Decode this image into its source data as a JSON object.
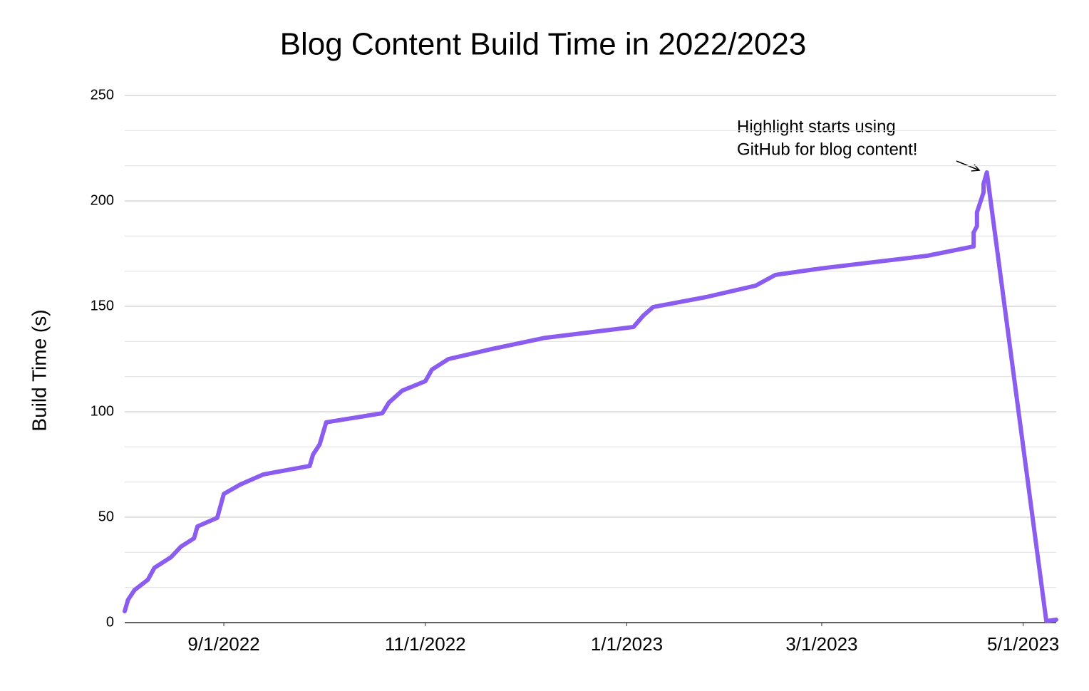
{
  "chart_data": {
    "type": "line",
    "title": "Blog Content Build Time in 2022/2023",
    "y_label": "Build Time (s)",
    "annotation": [
      "Highlight starts using",
      "GitHub for blog content!"
    ],
    "color": "#8b5cf0",
    "grid": true,
    "minor_grid_count": 2,
    "xlim": [
      "2022-08-02",
      "2023-05-11"
    ],
    "xticks": [
      {
        "value": "2022-09-01",
        "label": "9/1/2022"
      },
      {
        "value": "2022-11-01",
        "label": "11/1/2022"
      },
      {
        "value": "2023-01-01",
        "label": "1/1/2023"
      },
      {
        "value": "2023-03-01",
        "label": "3/1/2023"
      },
      {
        "value": "2023-05-01",
        "label": "5/1/2023"
      }
    ],
    "ylim": [
      0,
      250
    ],
    "yticks": [
      0,
      50,
      100,
      150,
      200,
      250
    ],
    "x": [
      "2022-08-02",
      "2022-08-03",
      "2022-08-05",
      "2022-08-09",
      "2022-08-11",
      "2022-08-16",
      "2022-08-19",
      "2022-08-23",
      "2022-08-24",
      "2022-08-30",
      "2022-09-01",
      "2022-09-06",
      "2022-09-13",
      "2022-09-27",
      "2022-09-28",
      "2022-09-30",
      "2022-10-02",
      "2022-10-19",
      "2022-10-21",
      "2022-10-25",
      "2022-11-01",
      "2022-11-03",
      "2022-11-08",
      "2022-11-21",
      "2022-12-07",
      "2023-01-03",
      "2023-01-06",
      "2023-01-09",
      "2023-01-25",
      "2023-02-09",
      "2023-02-15",
      "2023-03-01",
      "2023-04-02",
      "2023-04-16",
      "2023-04-16",
      "2023-04-17",
      "2023-04-17",
      "2023-04-19",
      "2023-04-19",
      "2023-04-20",
      "2023-05-08",
      "2023-05-11"
    ],
    "values": [
      5.4,
      10.8,
      15.5,
      20.3,
      26,
      31,
      36,
      40,
      45.6,
      49.7,
      61,
      65.5,
      70.3,
      74.3,
      79.7,
      84.5,
      95,
      99.3,
      104.4,
      110,
      114.5,
      120,
      125,
      129.7,
      135,
      140.2,
      145.6,
      149.7,
      154.4,
      159.8,
      164.9,
      168,
      174,
      178.4,
      185,
      188,
      194.6,
      204,
      208,
      213.5,
      0.7,
      1.4
    ]
  }
}
